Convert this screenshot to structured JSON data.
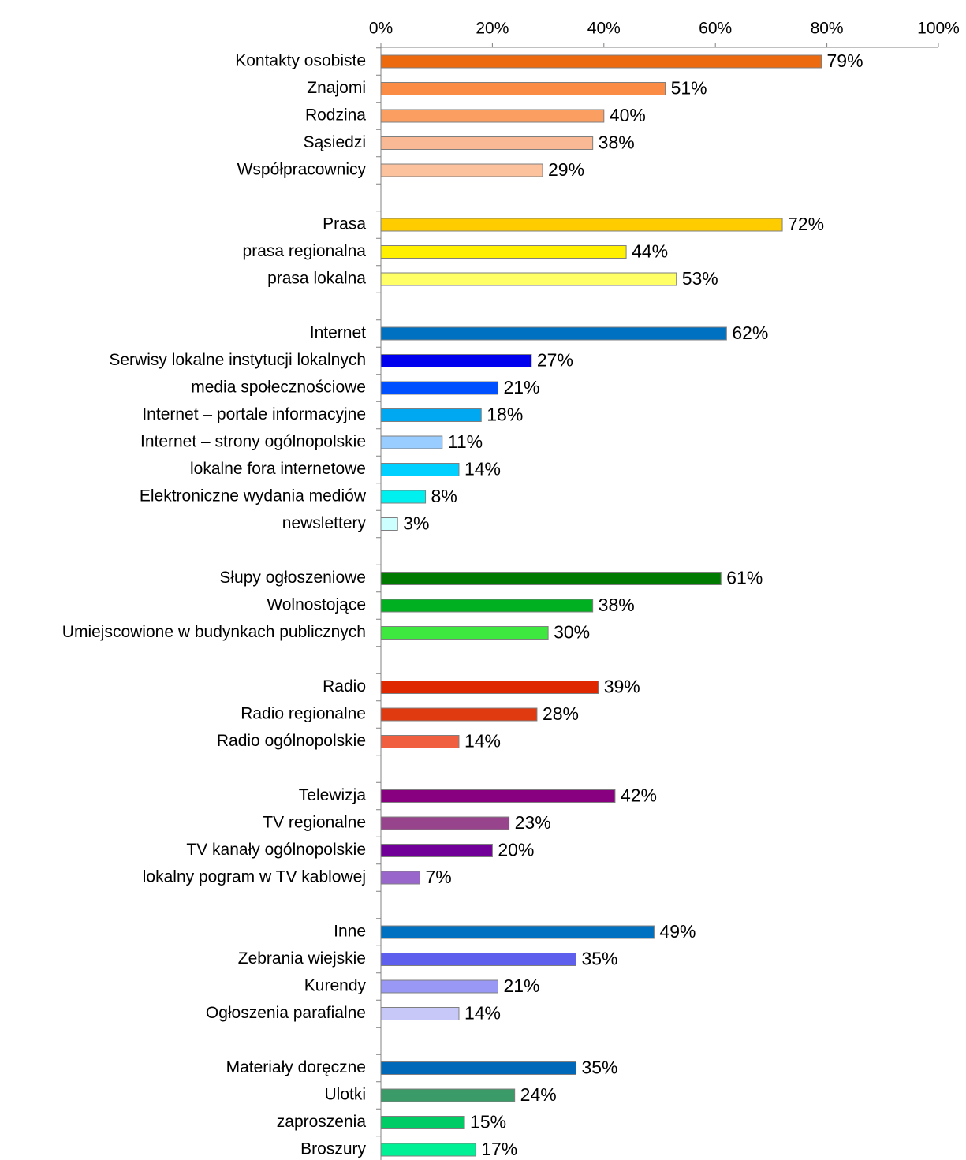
{
  "chart_data": {
    "type": "bar",
    "orientation": "horizontal",
    "title": "",
    "xlabel": "",
    "ylabel": "",
    "xlim": [
      0,
      100
    ],
    "x_ticks": [
      "0%",
      "20%",
      "40%",
      "60%",
      "80%",
      "100%"
    ],
    "x_axis_position": "top",
    "value_suffix": "%",
    "grid": false,
    "legend": "none",
    "categories": [
      "Kontakty osobiste",
      "Znajomi",
      "Rodzina",
      "Sąsiedzi",
      "Współpracownicy",
      "",
      "Prasa",
      "prasa regionalna",
      "prasa lokalna",
      "",
      "Internet",
      "Serwisy lokalne instytucji lokalnych",
      "media społecznościowe",
      "Internet – portale informacyjne",
      "Internet – strony ogólnopolskie",
      "lokalne fora internetowe",
      "Elektroniczne wydania mediów",
      "newslettery",
      "",
      "Słupy ogłoszeniowe",
      "Wolnostojące",
      "Umiejscowione w budynkach publicznych",
      "",
      "Radio",
      "Radio regionalne",
      "Radio ogólnopolskie",
      "",
      "Telewizja",
      "TV regionalne",
      "TV kanały ogólnopolskie",
      "lokalny pogram w TV kablowej",
      "",
      "Inne",
      "Zebrania wiejskie",
      "Kurendy",
      "Ogłoszenia parafialne",
      "",
      "Materiały doręczne",
      "Ulotki",
      "zaproszenia",
      "Broszury"
    ],
    "values": [
      79,
      51,
      40,
      38,
      29,
      null,
      72,
      44,
      53,
      null,
      62,
      27,
      21,
      18,
      11,
      14,
      8,
      3,
      null,
      61,
      38,
      30,
      null,
      39,
      28,
      14,
      null,
      42,
      23,
      20,
      7,
      null,
      49,
      35,
      21,
      14,
      null,
      35,
      24,
      15,
      17
    ],
    "colors": [
      "#EE6A0E",
      "#FA8C45",
      "#FB9E62",
      "#FAB995",
      "#FCC29E",
      null,
      "#FFCC00",
      "#FFF000",
      "#FFFF66",
      null,
      "#0070C0",
      "#0000EE",
      "#0050FF",
      "#00A8F2",
      "#99CCFF",
      "#00D0FF",
      "#00F0F0",
      "#CCFFFF",
      null,
      "#007A00",
      "#00B020",
      "#3EE83E",
      null,
      "#E02800",
      "#E03A10",
      "#F06040",
      null,
      "#880080",
      "#98448C",
      "#700098",
      "#9966CC",
      null,
      "#0070C0",
      "#5F5FEE",
      "#9999F5",
      "#C8C8F8",
      null,
      "#0068B8",
      "#3A9A68",
      "#00CC66",
      "#00F096"
    ]
  }
}
